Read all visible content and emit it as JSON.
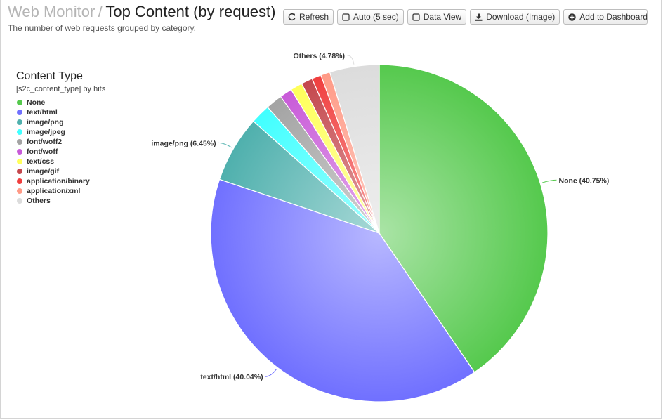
{
  "header": {
    "parent": "Web Monitor",
    "separator": "/",
    "title": "Top Content (by request)",
    "subtitle": "The number of web requests grouped by category."
  },
  "toolbar": {
    "refresh": "Refresh",
    "auto": "Auto (5 sec)",
    "data_view": "Data View",
    "download": "Download (Image)",
    "dashboard": "Add to Dashboard"
  },
  "legend": {
    "title": "Content Type",
    "subtitle": "[s2c_content_type] by hits"
  },
  "chart_data": {
    "type": "pie",
    "legend_position": "top-left",
    "slices": [
      {
        "name": "None",
        "percent": 40.75,
        "color": "#55c94d",
        "label": "None (40.75%)"
      },
      {
        "name": "text/html",
        "percent": 40.04,
        "color": "#7070ff",
        "label": "text/html (40.04%)"
      },
      {
        "name": "image/png",
        "percent": 6.45,
        "color": "#4fb0ad",
        "label": "image/png (6.45%)"
      },
      {
        "name": "image/jpeg",
        "percent": 1.9,
        "color": "#40ffff",
        "label": ""
      },
      {
        "name": "font/woff2",
        "percent": 1.6,
        "color": "#a3a3a3",
        "label": ""
      },
      {
        "name": "font/woff",
        "percent": 1.2,
        "color": "#c85ad8",
        "label": ""
      },
      {
        "name": "text/css",
        "percent": 1.15,
        "color": "#ffff5a",
        "label": ""
      },
      {
        "name": "image/gif",
        "percent": 1.1,
        "color": "#c4474c",
        "label": ""
      },
      {
        "name": "application/binary",
        "percent": 0.9,
        "color": "#f03e3e",
        "label": ""
      },
      {
        "name": "application/xml",
        "percent": 0.9,
        "color": "#ff9a86",
        "label": ""
      },
      {
        "name": "Others",
        "percent": 4.78,
        "color": "#dcdcdc",
        "label": "Others (4.78%)"
      }
    ]
  }
}
